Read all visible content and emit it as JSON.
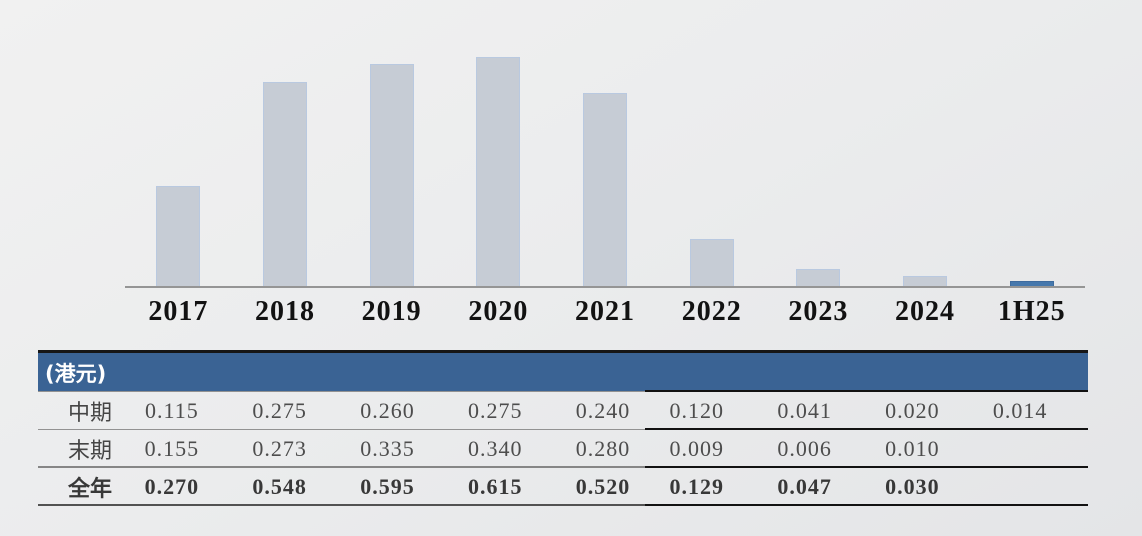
{
  "chart_data": {
    "type": "bar",
    "title": "",
    "categories": [
      "2017",
      "2018",
      "2019",
      "2020",
      "2021",
      "2022",
      "2023",
      "2024",
      "1H25"
    ],
    "bar_values": [
      0.27,
      0.548,
      0.595,
      0.615,
      0.52,
      0.129,
      0.047,
      0.03,
      0.014
    ],
    "series": [
      {
        "name": "中期",
        "values": [
          0.115,
          0.275,
          0.26,
          0.275,
          0.24,
          0.12,
          0.041,
          0.02,
          0.014
        ]
      },
      {
        "name": "末期",
        "values": [
          0.155,
          0.273,
          0.335,
          0.34,
          0.28,
          0.009,
          0.006,
          0.01,
          null
        ]
      },
      {
        "name": "全年",
        "values": [
          0.27,
          0.548,
          0.595,
          0.615,
          0.52,
          0.129,
          0.047,
          0.03,
          null
        ]
      }
    ],
    "highlight_index": 8,
    "ylim": [
      0,
      0.615
    ],
    "grid": false,
    "legend": "none",
    "unit_label": "(港元)",
    "colors": {
      "bar": "#c6ccd5",
      "bar_border": "#b9c9e0",
      "bar_highlight": "#4678ad",
      "header_bg": "#3a6394",
      "axis": "#959595"
    }
  },
  "table": {
    "header_label": "(港元)",
    "column_headers": [
      "2017",
      "2018",
      "2019",
      "2020",
      "2021",
      "2022",
      "2023",
      "2024",
      "1H25"
    ],
    "rows": [
      {
        "label": "中期",
        "bold": false,
        "values": [
          "0.115",
          "0.275",
          "0.260",
          "0.275",
          "0.240",
          "0.120",
          "0.041",
          "0.020",
          "0.014"
        ]
      },
      {
        "label": "末期",
        "bold": false,
        "values": [
          "0.155",
          "0.273",
          "0.335",
          "0.340",
          "0.280",
          "0.009",
          "0.006",
          "0.010",
          ""
        ]
      },
      {
        "label": "全年",
        "bold": true,
        "values": [
          "0.270",
          "0.548",
          "0.595",
          "0.615",
          "0.520",
          "0.129",
          "0.047",
          "0.030",
          ""
        ]
      }
    ],
    "right_zone_start_col": 5
  }
}
